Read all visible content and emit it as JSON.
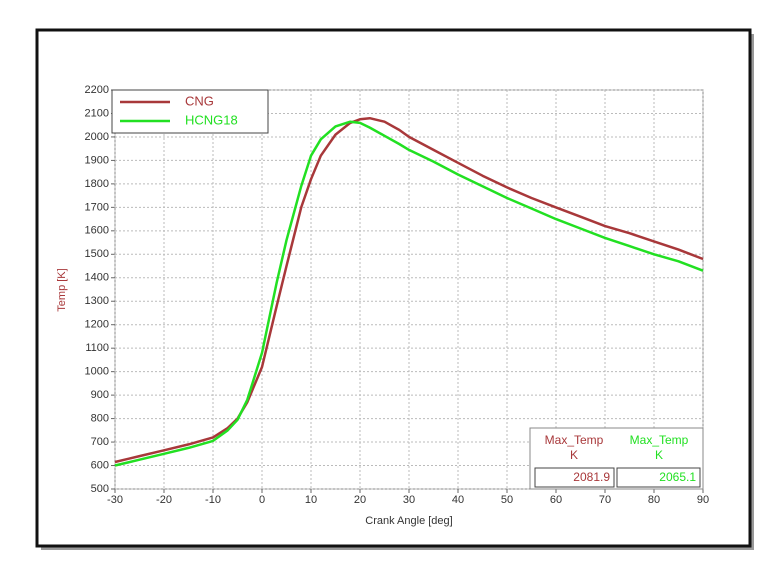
{
  "chart_data": {
    "type": "line",
    "xlabel": "Crank Angle [deg]",
    "ylabel": "Temp [K]",
    "x": [
      -30,
      -25,
      -20,
      -15,
      -10,
      -7,
      -5,
      -3,
      0,
      3,
      5,
      8,
      10,
      12,
      15,
      18,
      20,
      22,
      25,
      28,
      30,
      35,
      40,
      45,
      50,
      55,
      60,
      65,
      70,
      75,
      80,
      85,
      90
    ],
    "series": [
      {
        "name": "CNG",
        "color": "#a8383a",
        "values": [
          615,
          640,
          665,
          690,
          720,
          760,
          800,
          870,
          1020,
          1280,
          1450,
          1700,
          1820,
          1920,
          2010,
          2060,
          2075,
          2080,
          2065,
          2030,
          2000,
          1945,
          1890,
          1835,
          1785,
          1740,
          1700,
          1660,
          1620,
          1590,
          1555,
          1520,
          1480
        ]
      },
      {
        "name": "HCNG18",
        "color": "#22e022",
        "values": [
          600,
          625,
          650,
          675,
          705,
          750,
          795,
          880,
          1080,
          1380,
          1560,
          1790,
          1920,
          1990,
          2045,
          2065,
          2060,
          2040,
          2005,
          1970,
          1945,
          1895,
          1840,
          1790,
          1740,
          1695,
          1650,
          1610,
          1570,
          1535,
          1500,
          1470,
          1430
        ]
      }
    ],
    "xlim": [
      -30,
      90
    ],
    "xticks": [
      -30,
      -20,
      -10,
      0,
      10,
      20,
      30,
      40,
      50,
      60,
      70,
      80,
      90
    ],
    "ylim": [
      500,
      2200
    ],
    "yticks": [
      500,
      600,
      700,
      800,
      900,
      1000,
      1100,
      1200,
      1300,
      1400,
      1500,
      1600,
      1700,
      1800,
      1900,
      2000,
      2100,
      2200
    ],
    "grid": true,
    "legend": "upper left",
    "max_table": {
      "header": "Max_Temp",
      "unit": "K",
      "values": [
        2081.9,
        2065.1
      ]
    }
  }
}
